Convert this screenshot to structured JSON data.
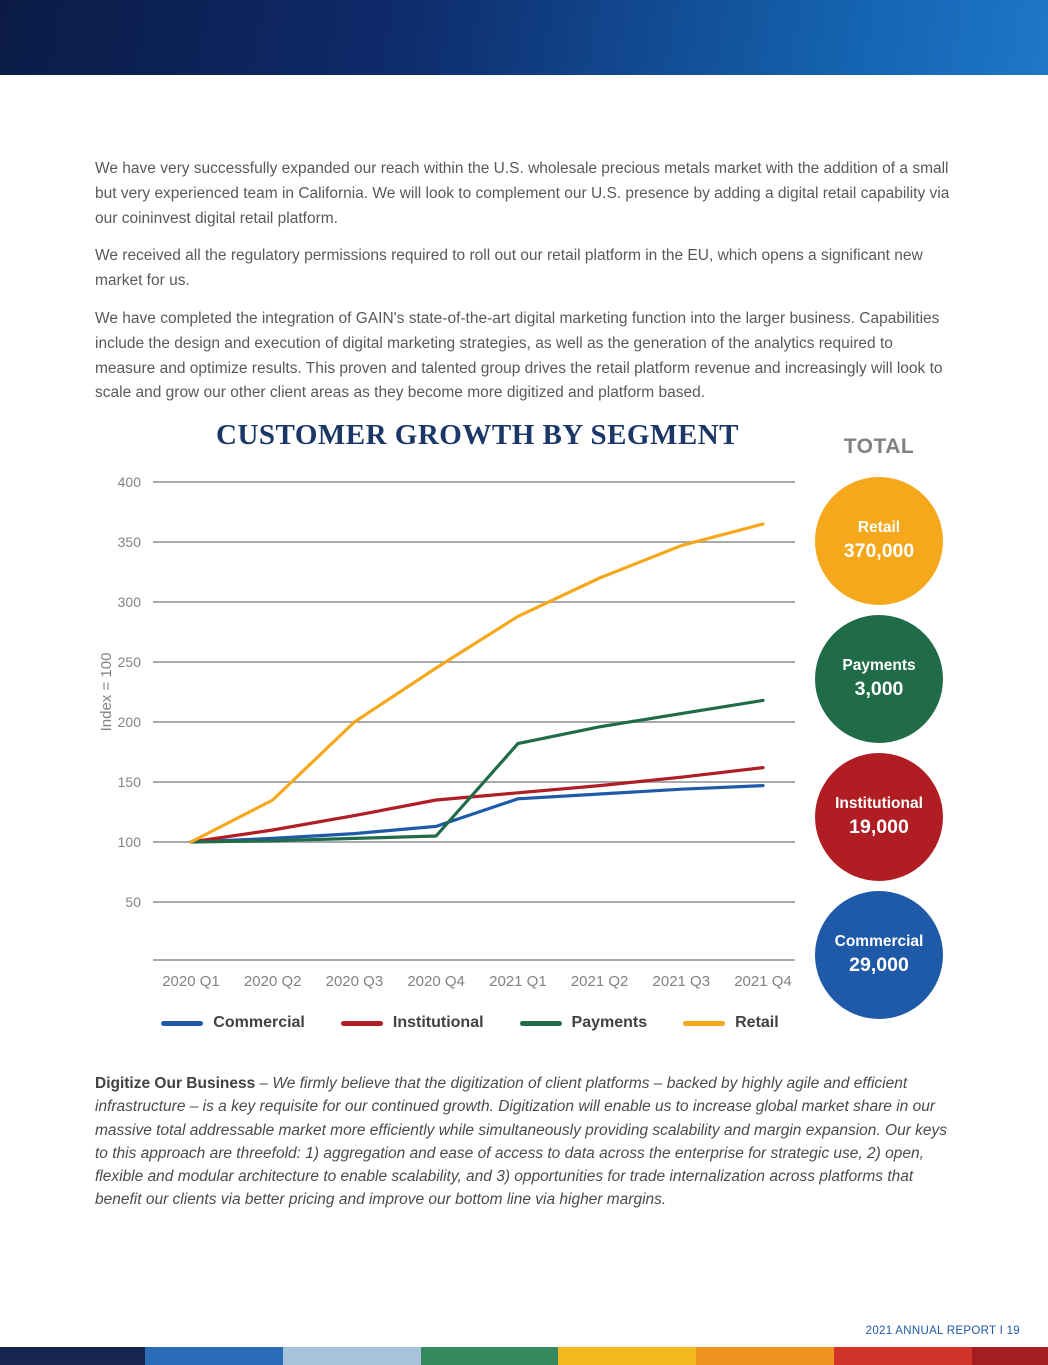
{
  "page": {
    "footer_text": "2021 ANNUAL REPORT I 19"
  },
  "paragraphs": [
    "We have very successfully expanded our reach within the U.S. wholesale precious metals market with the addition of a small but very experienced team in California.  We will look to complement our U.S. presence by adding a digital retail capability via our coininvest digital retail platform.",
    "We received all the regulatory permissions required to roll out our retail platform in the EU, which opens a significant new market for us.",
    "We have completed the integration of GAIN's state-of-the-art digital marketing function into the larger business.  Capabilities include the design and execution of digital marketing strategies, as well as the generation of the analytics required to measure and optimize results.  This proven and talented group drives the retail platform revenue and increasingly will look to scale and grow our other client areas as they become more digitized and platform based."
  ],
  "chart_data": {
    "type": "line",
    "title": "CUSTOMER GROWTH BY SEGMENT",
    "ylabel": "Index = 100",
    "categories": [
      "2020 Q1",
      "2020 Q2",
      "2020 Q3",
      "2020 Q4",
      "2021 Q1",
      "2021 Q2",
      "2021 Q3",
      "2021 Q4"
    ],
    "ylim": [
      50,
      400
    ],
    "ytick_step": 50,
    "grid": true,
    "legend_position": "bottom",
    "axis_color": "#A7A9AC",
    "tick_label_color": "#808285",
    "series": [
      {
        "name": "Commercial",
        "color": "#1F5AA8",
        "values": [
          100,
          103,
          107,
          113,
          136,
          140,
          144,
          147
        ]
      },
      {
        "name": "Institutional",
        "color": "#B01E24",
        "values": [
          100,
          110,
          122,
          135,
          141,
          147,
          154,
          162
        ]
      },
      {
        "name": "Payments",
        "color": "#206C49",
        "values": [
          100,
          101,
          103,
          105,
          182,
          196,
          207,
          218
        ]
      },
      {
        "name": "Retail",
        "color": "#F6A81C",
        "values": [
          100,
          135,
          200,
          245,
          288,
          320,
          347,
          365
        ]
      }
    ]
  },
  "totals": {
    "heading": "TOTAL",
    "items": [
      {
        "label": "Retail",
        "value": "370,000",
        "color": "#F6A81C"
      },
      {
        "label": "Payments",
        "value": "3,000",
        "color": "#206C49"
      },
      {
        "label": "Institutional",
        "value": "19,000",
        "color": "#B01E24"
      },
      {
        "label": "Commercial",
        "value": "29,000",
        "color": "#1F5AA8"
      }
    ]
  },
  "digitize": {
    "lead": "Digitize Our Business",
    "text": " – We firmly believe that the digitization of client platforms – backed by highly agile and efficient infrastructure – is a key requisite for our continued growth.  Digitization will enable us to increase global market share in our massive total addressable market more efficiently while simultaneously providing scalability and margin expansion. Our keys to this approach are threefold: 1) aggregation and ease of access to data across the enterprise for strategic use, 2) open, flexible and modular architecture to enable scalability, and 3) opportunities for trade internalization across platforms that benefit our clients via better pricing and improve our bottom line via higher margins."
  },
  "colors": {
    "header_gradient_start": "#0B1B45",
    "header_gradient_end": "#1E77C8",
    "title_navy": "#1B3768",
    "body_text": "#58595B",
    "footer_link_blue": "#2058A8"
  },
  "footer_bar": {
    "segments": [
      "#16254E",
      "#2A6CB8",
      "#A9C2DC",
      "#35895E",
      "#F3B81D",
      "#F0941F",
      "#D2342A",
      "#A31E22"
    ]
  }
}
